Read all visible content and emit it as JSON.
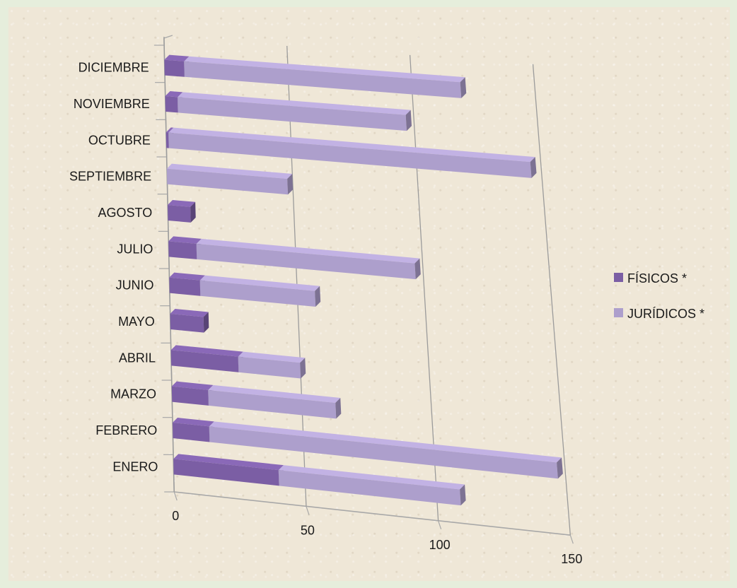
{
  "chart_data": {
    "type": "bar",
    "orientation": "horizontal",
    "stacked": true,
    "three_d": true,
    "categories": [
      "ENERO",
      "FEBRERO",
      "MARZO",
      "ABRIL",
      "MAYO",
      "JUNIO",
      "JULIO",
      "AGOSTO",
      "SEPTIEMBRE",
      "OCTUBRE",
      "NOVIEMBRE",
      "DICIEMBRE"
    ],
    "series": [
      {
        "name": "FÍSICOS *",
        "color": "#7b5ea4",
        "values": [
          40,
          14,
          14,
          26,
          13,
          12,
          11,
          9,
          0,
          1,
          5,
          8
        ]
      },
      {
        "name": "JURÍDICOS *",
        "color": "#ad9fcc",
        "values": [
          69,
          133,
          49,
          24,
          0,
          45,
          86,
          0,
          48,
          145,
          92,
          112
        ]
      }
    ],
    "xticks": [
      "0",
      "50",
      "100",
      "150"
    ],
    "xlim": [
      0,
      150
    ],
    "grid": true,
    "legend_position": "right"
  }
}
